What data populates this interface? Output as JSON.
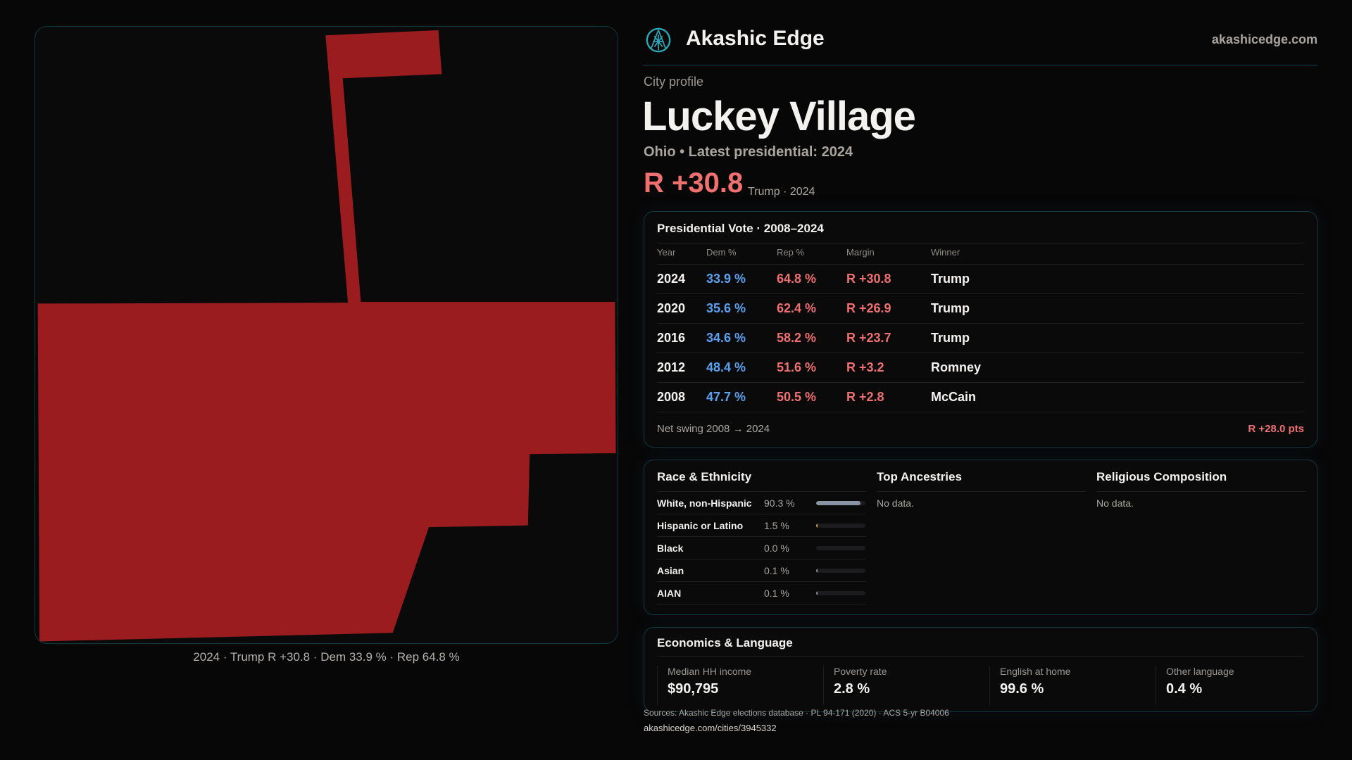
{
  "header": {
    "brand": "Akashic Edge",
    "site": "akashicedge.com",
    "logo_icon": "akashic-emblem-icon",
    "accent": "#2aa7b8"
  },
  "profile": {
    "kicker": "City profile",
    "title": "Luckey Village",
    "subtitle": "Ohio • Latest presidential: 2024",
    "margin": "R +30.8",
    "margin_note": "Trump · 2024",
    "rep_color": "#f0706f",
    "dem_color": "#5aa2f0"
  },
  "map": {
    "caption": "2024 · Trump R +30.8 · Dem 33.9 % · Rep 64.8 %",
    "fill": "#9b1c1f"
  },
  "vote": {
    "title": "Presidential Vote · 2008–2024",
    "headers": [
      "Year",
      "Dem %",
      "Rep %",
      "Margin",
      "Winner"
    ],
    "rows": [
      {
        "year": "2024",
        "dem": "33.9 %",
        "rep": "64.8 %",
        "margin": "R +30.8",
        "winner": "Trump"
      },
      {
        "year": "2020",
        "dem": "35.6 %",
        "rep": "62.4 %",
        "margin": "R +26.9",
        "winner": "Trump"
      },
      {
        "year": "2016",
        "dem": "34.6 %",
        "rep": "58.2 %",
        "margin": "R +23.7",
        "winner": "Trump"
      },
      {
        "year": "2012",
        "dem": "48.4 %",
        "rep": "51.6 %",
        "margin": "R +3.2",
        "winner": "Romney"
      },
      {
        "year": "2008",
        "dem": "47.7 %",
        "rep": "50.5 %",
        "margin": "R +2.8",
        "winner": "McCain"
      }
    ],
    "swing_label": "Net swing 2008 → 2024",
    "swing_value": "R +28.0 pts"
  },
  "race": {
    "title": "Race & Ethnicity",
    "rows": [
      {
        "name": "White, non-Hispanic",
        "pct": "90.3 %",
        "value": 90.3,
        "color": "#8a93a3"
      },
      {
        "name": "Hispanic or Latino",
        "pct": "1.5 %",
        "value": 1.5,
        "color": "#e0a030"
      },
      {
        "name": "Black",
        "pct": "0.0 %",
        "value": 0.0,
        "color": "#8a93a3"
      },
      {
        "name": "Asian",
        "pct": "0.1 %",
        "value": 0.1,
        "color": "#8a93a3"
      },
      {
        "name": "AIAN",
        "pct": "0.1 %",
        "value": 0.1,
        "color": "#8a93a3"
      }
    ]
  },
  "ancestries": {
    "title": "Top Ancestries",
    "empty": "No data."
  },
  "religion": {
    "title": "Religious Composition",
    "empty": "No data."
  },
  "econ": {
    "title": "Economics & Language",
    "stats": [
      {
        "label": "Median HH income",
        "value": "$90,795"
      },
      {
        "label": "Poverty rate",
        "value": "2.8 %"
      },
      {
        "label": "English at home",
        "value": "99.6 %"
      },
      {
        "label": "Other language",
        "value": "0.4 %"
      }
    ]
  },
  "footer": {
    "sources": "Sources: Akashic Edge elections database · PL 94-171 (2020) · ACS 5-yr B04006",
    "url": "akashicedge.com/cities/3945332"
  }
}
